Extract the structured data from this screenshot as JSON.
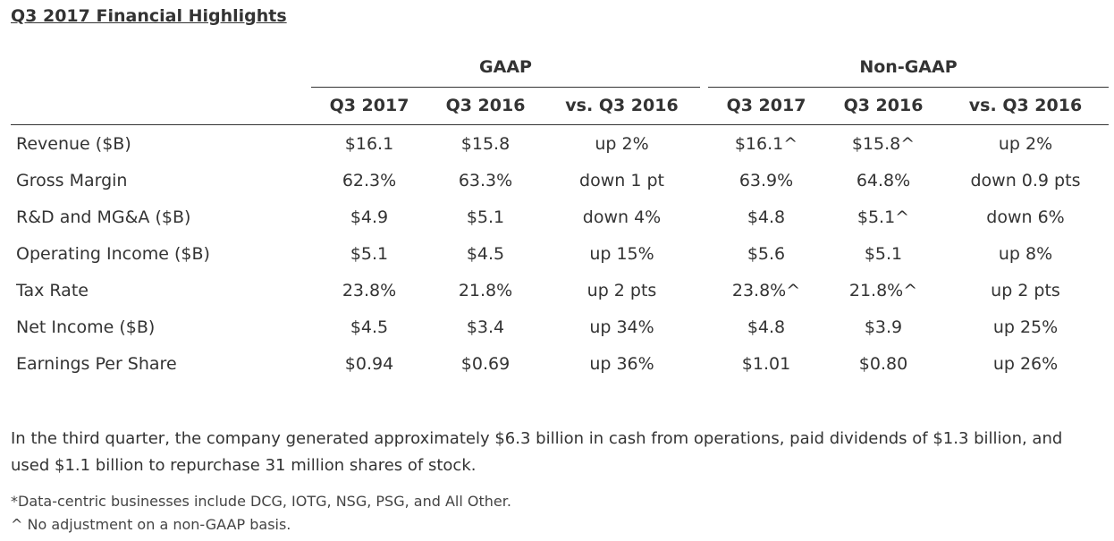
{
  "title": "Q3 2017 Financial Highlights",
  "groups": {
    "gaap": "GAAP",
    "non_gaap": "Non-GAAP"
  },
  "headers": [
    "Q3 2017",
    "Q3 2016",
    "vs. Q3 2016",
    "Q3 2017",
    "Q3 2016",
    "vs. Q3 2016"
  ],
  "rows": [
    {
      "label": "Revenue ($B)",
      "values": [
        "$16.1",
        "$15.8",
        "up 2%",
        "$16.1^",
        "$15.8^",
        "up 2%"
      ]
    },
    {
      "label": "Gross Margin",
      "values": [
        "62.3%",
        "63.3%",
        "down 1 pt",
        "63.9%",
        "64.8%",
        "down 0.9 pts"
      ]
    },
    {
      "label": "R&D and MG&A ($B)",
      "values": [
        "$4.9",
        "$5.1",
        "down 4%",
        "$4.8",
        "$5.1^",
        "down 6%"
      ]
    },
    {
      "label": "Operating Income ($B)",
      "values": [
        "$5.1",
        "$4.5",
        "up 15%",
        "$5.6",
        "$5.1",
        "up 8%"
      ]
    },
    {
      "label": "Tax Rate",
      "values": [
        "23.8%",
        "21.8%",
        "up 2 pts",
        "23.8%^",
        "21.8%^",
        "up 2 pts"
      ]
    },
    {
      "label": "Net Income ($B)",
      "values": [
        "$4.5",
        "$3.4",
        "up 34%",
        "$4.8",
        "$3.9",
        "up 25%"
      ]
    },
    {
      "label": "Earnings Per Share",
      "values": [
        "$0.94",
        "$0.69",
        "up 36%",
        "$1.01",
        "$0.80",
        "up 26%"
      ]
    }
  ],
  "paragraph": "In the third quarter, the company generated approximately $6.3 billion in cash from operations, paid dividends of $1.3 billion, and used $1.1 billion to repurchase 31 million shares of stock.",
  "footnotes": [
    "*Data-centric businesses include DCG, IOTG, NSG, PSG, and All Other.",
    "^ No adjustment on a non-GAAP basis."
  ]
}
